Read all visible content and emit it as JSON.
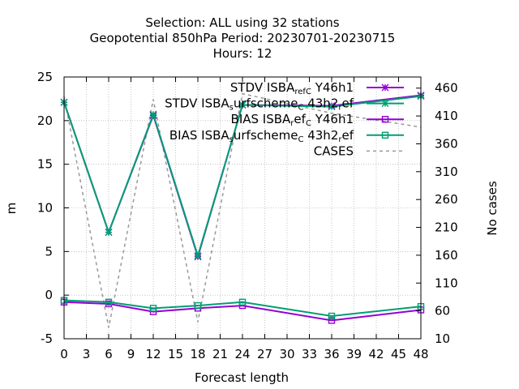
{
  "chart_data": {
    "type": "line",
    "title_lines": [
      "Selection: ALL using    32 stations",
      "Geopotential 850hPa   Period: 20230701-20230715",
      "Hours:  12"
    ],
    "xlabel": "Forecast length",
    "ylabel": "m",
    "y2label": "No cases",
    "xlim": [
      0,
      48
    ],
    "ylim": [
      -5,
      25
    ],
    "y2lim": [
      10,
      480
    ],
    "xticks": [
      0,
      3,
      6,
      9,
      12,
      15,
      18,
      21,
      24,
      27,
      30,
      33,
      36,
      39,
      42,
      45,
      48
    ],
    "yticks": [
      -5,
      0,
      5,
      10,
      15,
      20,
      25
    ],
    "y2ticks": [
      10,
      60,
      110,
      160,
      210,
      260,
      310,
      360,
      410,
      460
    ],
    "grid": true,
    "legend_position": "top-right",
    "series": [
      {
        "name": "STDV ISBA_ref_C Y46h1",
        "legend_parts": [
          [
            "STDV ISBA",
            ""
          ],
          [
            "ref",
            "sub"
          ],
          [
            "C",
            "sub"
          ],
          [
            " Y46h1",
            ""
          ]
        ],
        "color": "#9400d3",
        "marker": "star",
        "axis": "y",
        "x": [
          0,
          6,
          12,
          18,
          24,
          36,
          48
        ],
        "y": [
          22.1,
          7.2,
          20.6,
          4.4,
          21.8,
          21.7,
          22.9
        ]
      },
      {
        "name": "STDV ISBA_surfscheme_C 43h2_ref",
        "legend_parts": [
          [
            "STDV ISBA",
            ""
          ],
          [
            "s",
            "sub"
          ],
          [
            "urfscheme",
            ""
          ],
          [
            "C",
            "sub"
          ],
          [
            " 43h2",
            ""
          ],
          [
            "r",
            "sub"
          ],
          [
            "ef",
            ""
          ]
        ],
        "color": "#009e73",
        "marker": "star",
        "axis": "y",
        "x": [
          0,
          6,
          12,
          18,
          24,
          36,
          48
        ],
        "y": [
          22.1,
          7.2,
          20.7,
          4.5,
          21.8,
          21.6,
          22.8
        ]
      },
      {
        "name": "BIAS ISBA_ref_C Y46h1",
        "legend_parts": [
          [
            "BIAS ISBA",
            ""
          ],
          [
            "r",
            "sub"
          ],
          [
            "ef",
            ""
          ],
          [
            "C",
            "sub"
          ],
          [
            " Y46h1",
            ""
          ]
        ],
        "color": "#9400d3",
        "marker": "square",
        "axis": "y",
        "x": [
          0,
          6,
          12,
          18,
          24,
          36,
          48
        ],
        "y": [
          -0.8,
          -1.0,
          -1.9,
          -1.5,
          -1.2,
          -2.9,
          -1.7
        ]
      },
      {
        "name": "BIAS ISBA_surfscheme_C 43h2_ref",
        "legend_parts": [
          [
            "BIAS ISBA",
            ""
          ],
          [
            "s",
            "sub"
          ],
          [
            "urfscheme",
            ""
          ],
          [
            "C",
            "sub"
          ],
          [
            " 43h2",
            ""
          ],
          [
            "r",
            "sub"
          ],
          [
            "ef",
            ""
          ]
        ],
        "color": "#009e73",
        "marker": "square",
        "axis": "y",
        "x": [
          0,
          6,
          12,
          18,
          24,
          36,
          48
        ],
        "y": [
          -0.6,
          -0.8,
          -1.5,
          -1.2,
          -0.8,
          -2.4,
          -1.3
        ]
      },
      {
        "name": "CASES",
        "legend_parts": [
          [
            "CASES",
            ""
          ]
        ],
        "color": "#999999",
        "marker": "none",
        "dashed": true,
        "axis": "y2",
        "x": [
          0,
          6,
          12,
          18,
          24,
          36,
          48
        ],
        "y": [
          445,
          30,
          440,
          40,
          450,
          415,
          390
        ]
      }
    ]
  }
}
